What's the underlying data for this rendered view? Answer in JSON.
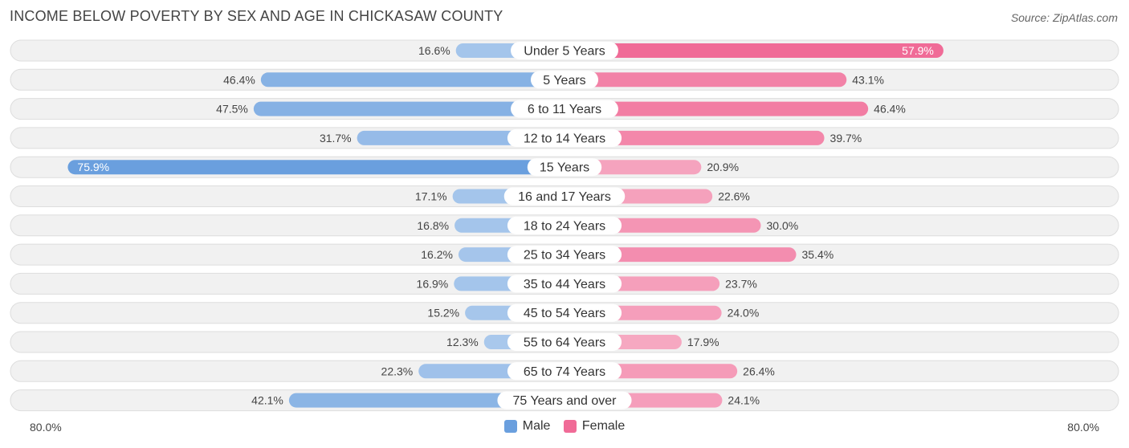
{
  "title": "INCOME BELOW POVERTY BY SEX AND AGE IN CHICKASAW COUNTY",
  "source": "Source: ZipAtlas.com",
  "colors": {
    "male_light": "#a9c8ec",
    "male_strong": "#6a9fde",
    "female_light": "#f6a9c2",
    "female_strong": "#f06b97",
    "row_bg": "#f1f1f1",
    "row_border": "#dddddd"
  },
  "chart_data": {
    "type": "bar",
    "orientation": "horizontal-diverging",
    "title": "INCOME BELOW POVERTY BY SEX AND AGE IN CHICKASAW COUNTY",
    "categories": [
      "Under 5 Years",
      "5 Years",
      "6 to 11 Years",
      "12 to 14 Years",
      "15 Years",
      "16 and 17 Years",
      "18 to 24 Years",
      "25 to 34 Years",
      "35 to 44 Years",
      "45 to 54 Years",
      "55 to 64 Years",
      "65 to 74 Years",
      "75 Years and over"
    ],
    "series": [
      {
        "name": "Male",
        "values": [
          16.6,
          46.4,
          47.5,
          31.7,
          75.9,
          17.1,
          16.8,
          16.2,
          16.9,
          15.2,
          12.3,
          22.3,
          42.1
        ],
        "labels": [
          "16.6%",
          "46.4%",
          "47.5%",
          "31.7%",
          "75.9%",
          "17.1%",
          "16.8%",
          "16.2%",
          "16.9%",
          "15.2%",
          "12.3%",
          "22.3%",
          "42.1%"
        ]
      },
      {
        "name": "Female",
        "values": [
          57.9,
          43.1,
          46.4,
          39.7,
          20.9,
          22.6,
          30.0,
          35.4,
          23.7,
          24.0,
          17.9,
          26.4,
          24.1
        ],
        "labels": [
          "57.9%",
          "43.1%",
          "46.4%",
          "39.7%",
          "20.9%",
          "22.6%",
          "30.0%",
          "35.4%",
          "23.7%",
          "24.0%",
          "17.9%",
          "26.4%",
          "24.1%"
        ]
      }
    ],
    "xlim": [
      -80,
      80
    ],
    "axis_left_label": "80.0%",
    "axis_right_label": "80.0%",
    "legend": [
      "Male",
      "Female"
    ],
    "legend_position": "bottom-center"
  }
}
